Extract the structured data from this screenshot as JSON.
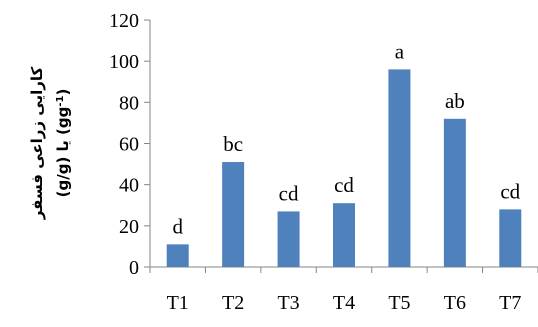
{
  "chart_data": {
    "type": "bar",
    "title": "",
    "xlabel": "",
    "ylabel": {
      "line1": "کارایی زراعی فسفر",
      "line2": "(g/g) یا (gg",
      "line2_sup": "-1",
      "line2_end": ")"
    },
    "categories": [
      "T1",
      "T2",
      "T3",
      "T4",
      "T5",
      "T6",
      "T7"
    ],
    "values": [
      11,
      51,
      27,
      31,
      96,
      72,
      28
    ],
    "data_labels": [
      "d",
      "bc",
      "cd",
      "cd",
      "a",
      "ab",
      "cd"
    ],
    "ylim": [
      0,
      120
    ],
    "yticks": [
      0,
      20,
      40,
      60,
      80,
      100,
      120
    ],
    "grid": false,
    "legend": "none",
    "bar_color": "#4F81BD",
    "axis_color": "#868686"
  }
}
